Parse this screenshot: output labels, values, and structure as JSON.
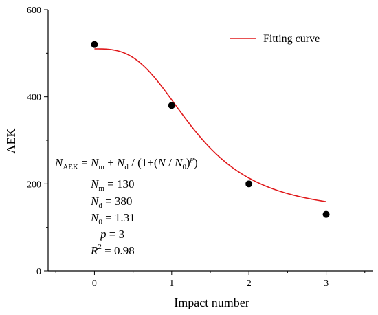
{
  "chart_data": {
    "type": "scatter",
    "xlabel": "Impact number",
    "ylabel": "AEK",
    "xlim": [
      -0.6,
      3.6
    ],
    "ylim": [
      0,
      600
    ],
    "x_ticks": [
      "0",
      "1",
      "2",
      "3"
    ],
    "y_ticks": [
      "0",
      "200",
      "400",
      "600"
    ],
    "grid": false,
    "legend_position": "top-right",
    "series": [
      {
        "name": "",
        "kind": "scatter",
        "color": "#000000",
        "points": [
          {
            "x": 0,
            "y": 520
          },
          {
            "x": 1,
            "y": 380
          },
          {
            "x": 2,
            "y": 200
          },
          {
            "x": 3,
            "y": 130
          }
        ]
      },
      {
        "name": "Fitting curve",
        "kind": "line",
        "color": "#e0191b",
        "model": "N_AEK = Nm + Nd / (1 + (N/N0)^p)",
        "params": {
          "Nm": 130,
          "Nd": 380,
          "N0": 1.31,
          "p": 3
        },
        "x_range": [
          0,
          3
        ]
      }
    ],
    "annotations": {
      "equation": {
        "lhs_main": "N",
        "lhs_sub": "AEK",
        "eq1": " = ",
        "m_main": "N",
        "m_sub": "m",
        "plus": " + ",
        "d_main": "N",
        "d_sub": "d",
        "slash": " / ",
        "paren_open": "(1+(",
        "n_var": "N",
        "slash2": " / ",
        "n0_main": "N",
        "n0_sub": "0",
        "paren_close": ")",
        "p_sup": "p",
        "final_close": ")"
      },
      "params": [
        {
          "main": "N",
          "sub": "m",
          "rest": " = 130"
        },
        {
          "main": "N",
          "sub": "d",
          "rest": " = 380"
        },
        {
          "main": "N",
          "sub": "0",
          "rest": " = 1.31"
        },
        {
          "main": "p",
          "sub": "",
          "rest": " = 3"
        },
        {
          "main": "R",
          "sup": "2",
          "rest": " = 0.98"
        }
      ]
    }
  }
}
